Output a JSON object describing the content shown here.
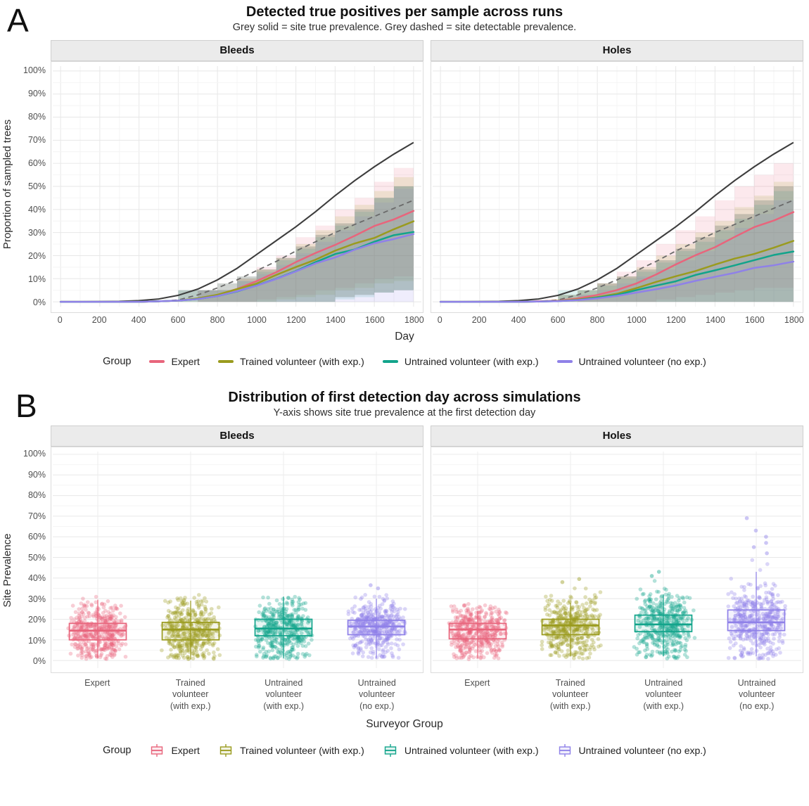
{
  "page": {
    "panel_a_letter": "A",
    "panel_b_letter": "B"
  },
  "chart_data": [
    {
      "id": "panel_a",
      "type": "line",
      "title": "Detected true positives per sample across runs",
      "subtitle": "Grey solid = site true prevalence. Grey dashed = site detectable prevalence.",
      "facets": [
        "Bleeds",
        "Holes"
      ],
      "xlabel": "Day",
      "ylabel": "Proportion of sampled trees",
      "xlim": [
        0,
        1800
      ],
      "ylim": [
        0,
        100
      ],
      "x_ticks": [
        0,
        200,
        400,
        600,
        800,
        1000,
        1200,
        1400,
        1600,
        1800
      ],
      "y_ticks_percent": [
        0,
        10,
        20,
        30,
        40,
        50,
        60,
        70,
        80,
        90,
        100
      ],
      "grid": "major 10% / 200 days, minor 5% / 100 days",
      "legend": {
        "title": "Group",
        "position": "bottom",
        "items": [
          {
            "label": "Expert",
            "color": "#E8657C"
          },
          {
            "label": "Trained volunteer (with exp.)",
            "color": "#9A9B1E"
          },
          {
            "label": "Untrained volunteer (with exp.)",
            "color": "#12A48B"
          },
          {
            "label": "Untrained volunteer (no exp.)",
            "color": "#8F81E8"
          }
        ]
      },
      "reference": {
        "solid_label": "site true prevalence",
        "solid_color": "#3D3D3D",
        "dashed_label": "site detectable prevalence",
        "dashed_color": "#6A6A6A"
      },
      "x_sample_days": [
        0,
        100,
        200,
        300,
        400,
        500,
        600,
        700,
        800,
        900,
        1000,
        1100,
        1200,
        1300,
        1400,
        1500,
        1600,
        1700,
        1800
      ],
      "ribbon_days": [
        600,
        700,
        800,
        900,
        1000,
        1100,
        1200,
        1300,
        1400,
        1500,
        1600,
        1700,
        1800
      ],
      "facet_data": {
        "Bleeds": {
          "true_prevalence": [
            0,
            0,
            0.1,
            0.2,
            0.5,
            1.2,
            2.8,
            5.5,
            9.5,
            14.5,
            20.5,
            26.5,
            32.5,
            39,
            46,
            52.5,
            58.5,
            64,
            69
          ],
          "detectable_prevalence": [
            0,
            0,
            0,
            0,
            0,
            0.2,
            0.8,
            3,
            6,
            9.5,
            13.5,
            17.5,
            22,
            26,
            30,
            33.5,
            37,
            40.5,
            44
          ],
          "series": [
            {
              "name": "Expert",
              "color": "#E8657C",
              "values": [
                0,
                0,
                0,
                0,
                0,
                0.2,
                0.5,
                1.5,
                3,
                5.5,
                9,
                13,
                17,
                21,
                25,
                28.5,
                32.5,
                36,
                39.5
              ],
              "ribbon_hi": [
                0,
                5,
                5,
                10,
                15,
                20,
                28,
                33,
                40,
                45,
                52,
                58,
                65
              ],
              "ribbon_lo": [
                0,
                0,
                0,
                0,
                0,
                1,
                2,
                3,
                5,
                6,
                8,
                10,
                11
              ]
            },
            {
              "name": "Trained volunteer (with exp.)",
              "color": "#9A9B1E",
              "values": [
                0,
                0,
                0,
                0,
                0,
                0.2,
                0.5,
                1.5,
                3,
                5.5,
                8,
                11.5,
                15,
                18.5,
                22,
                25,
                28,
                31.5,
                34.5
              ],
              "ribbon_hi": [
                0,
                5,
                5,
                10,
                14,
                19,
                25,
                31,
                37,
                42,
                48,
                54,
                60
              ],
              "ribbon_lo": [
                0,
                0,
                0,
                0,
                0,
                0,
                1,
                2,
                3,
                5,
                6,
                8,
                9
              ]
            },
            {
              "name": "Untrained volunteer (with exp.)",
              "color": "#12A48B",
              "values": [
                0,
                0,
                0,
                0,
                0,
                0.2,
                0.5,
                1.2,
                2.5,
                4.5,
                7,
                10,
                13.5,
                17,
                20.5,
                23,
                26,
                28.5,
                30.5
              ],
              "ribbon_hi": [
                5,
                5,
                5,
                9,
                13,
                18,
                23,
                28,
                33,
                39,
                45,
                50,
                55
              ],
              "ribbon_lo": [
                0,
                0,
                0,
                0,
                0,
                0,
                0,
                0,
                0,
                1,
                2,
                4,
                5
              ]
            },
            {
              "name": "Untrained volunteer (no exp.)",
              "color": "#8F81E8",
              "values": [
                0,
                0,
                0,
                0,
                0,
                0.2,
                0.5,
                1.2,
                2.5,
                4.5,
                7,
                10,
                13,
                16.5,
                19.5,
                22.5,
                25,
                27.5,
                29.5
              ],
              "ribbon_hi": [
                0,
                5,
                5,
                9,
                12,
                16,
                21,
                26,
                31,
                37,
                43,
                49,
                55
              ],
              "ribbon_lo": [
                0,
                0,
                0,
                0,
                0,
                0,
                0,
                0,
                0,
                0,
                0,
                0,
                0
              ]
            }
          ],
          "overlap_band": {
            "hi": [
              5,
              5,
              8,
              11,
              14,
              19,
              24,
              29,
              34,
              40,
              45,
              50,
              55
            ],
            "lo": [
              0,
              0,
              0,
              0,
              0,
              0,
              0,
              0,
              0,
              2,
              3,
              4,
              5
            ]
          }
        },
        "Holes": {
          "true_prevalence": [
            0,
            0,
            0.1,
            0.2,
            0.5,
            1.2,
            2.8,
            5.5,
            9.5,
            14.5,
            20.5,
            26.5,
            32.5,
            39,
            46,
            52.5,
            58.5,
            64,
            69
          ],
          "detectable_prevalence": [
            0,
            0,
            0,
            0,
            0,
            0.2,
            0.8,
            3,
            6,
            9.5,
            13.5,
            17.5,
            22,
            26,
            30,
            33.5,
            37,
            40.5,
            44
          ],
          "series": [
            {
              "name": "Expert",
              "color": "#E8657C",
              "values": [
                0,
                0,
                0,
                0,
                0,
                0.2,
                0.5,
                1.5,
                3,
                5,
                8,
                12,
                16,
                20,
                24,
                28,
                32,
                35.5,
                39
              ],
              "ribbon_hi": [
                0,
                3,
                8,
                13,
                18,
                25,
                31,
                37,
                44,
                50,
                55,
                60,
                63
              ],
              "ribbon_lo": [
                0,
                0,
                0,
                0,
                0,
                0,
                1,
                2,
                3,
                4,
                5,
                6,
                6
              ]
            },
            {
              "name": "Trained volunteer (with exp.)",
              "color": "#9A9B1E",
              "values": [
                0,
                0,
                0,
                0,
                0,
                0.1,
                0.4,
                1,
                2,
                3.5,
                6,
                8.5,
                11,
                13.5,
                16,
                18.5,
                21,
                23.5,
                26
              ],
              "ribbon_hi": [
                3,
                5,
                8,
                11,
                15,
                20,
                25,
                30,
                35,
                41,
                46,
                52,
                57
              ],
              "ribbon_lo": [
                0,
                0,
                0,
                0,
                0,
                0,
                0,
                0,
                0,
                0,
                0,
                0,
                0
              ]
            },
            {
              "name": "Untrained volunteer (with exp.)",
              "color": "#12A48B",
              "values": [
                0,
                0,
                0,
                0,
                0,
                0.1,
                0.3,
                0.8,
                1.8,
                3,
                5,
                7,
                9,
                11.5,
                13.5,
                16,
                18,
                20,
                22
              ],
              "ribbon_hi": [
                5,
                5,
                7,
                10,
                13,
                17,
                22,
                26,
                31,
                36,
                42,
                48,
                54
              ],
              "ribbon_lo": [
                0,
                0,
                0,
                0,
                0,
                0,
                0,
                0,
                0,
                0,
                0,
                0,
                0
              ]
            },
            {
              "name": "Untrained volunteer (no exp.)",
              "color": "#8F81E8",
              "values": [
                0,
                0,
                0,
                0,
                0,
                0.1,
                0.3,
                0.7,
                1.5,
                2.5,
                4,
                5.5,
                7,
                9,
                11,
                12.5,
                14.5,
                16,
                17.5
              ],
              "ribbon_hi": [
                0,
                3,
                5,
                8,
                11,
                14,
                18,
                22,
                27,
                32,
                38,
                44,
                50
              ],
              "ribbon_lo": [
                0,
                0,
                0,
                0,
                0,
                0,
                0,
                0,
                0,
                0,
                0,
                0,
                0
              ]
            }
          ],
          "overlap_band": {
            "hi": [
              3,
              5,
              8,
              11,
              14,
              18,
              23,
              28,
              33,
              38,
              44,
              50,
              55
            ],
            "lo": [
              0,
              0,
              0,
              0,
              0,
              0,
              0,
              0,
              0,
              0,
              0,
              0,
              0
            ]
          }
        }
      }
    },
    {
      "id": "panel_b",
      "type": "boxplot-jitter",
      "title": "Distribution of first detection day across simulations",
      "subtitle": "Y-axis shows site true prevalence at the first detection day",
      "facets": [
        "Bleeds",
        "Holes"
      ],
      "xlabel": "Surveyor Group",
      "ylabel": "Site Prevalence",
      "ylim": [
        0,
        100
      ],
      "y_ticks_percent": [
        0,
        10,
        20,
        30,
        40,
        50,
        60,
        70,
        80,
        90,
        100
      ],
      "legend": {
        "title": "Group",
        "position": "bottom",
        "items": [
          {
            "label": "Expert",
            "color": "#E8657C"
          },
          {
            "label": "Trained volunteer (with exp.)",
            "color": "#9A9B1E"
          },
          {
            "label": "Untrained volunteer (with exp.)",
            "color": "#12A48B"
          },
          {
            "label": "Untrained volunteer (no exp.)",
            "color": "#8F81E8"
          }
        ]
      },
      "groups": [
        {
          "name": "Expert",
          "label_lines": [
            "Expert"
          ],
          "color": "#E8657C"
        },
        {
          "name": "Trained volunteer (with exp.)",
          "label_lines": [
            "Trained",
            "volunteer",
            "(with exp.)"
          ],
          "color": "#9A9B1E"
        },
        {
          "name": "Untrained volunteer (with exp.)",
          "label_lines": [
            "Untrained",
            "volunteer",
            "(with exp.)"
          ],
          "color": "#12A48B"
        },
        {
          "name": "Untrained volunteer (no exp.)",
          "label_lines": [
            "Untrained",
            "volunteer",
            "(no exp.)"
          ],
          "color": "#8F81E8"
        }
      ],
      "facet_data": {
        "Bleeds": [
          {
            "group": "Expert",
            "q1": 10,
            "median": 14.5,
            "q3": 18,
            "whisker_low": 1,
            "whisker_high": 29.5,
            "points_max": 31,
            "n_points": 430,
            "outliers": []
          },
          {
            "group": "Trained volunteer (with exp.)",
            "q1": 10,
            "median": 15,
            "q3": 18.5,
            "whisker_low": 0.5,
            "whisker_high": 29,
            "points_max": 32,
            "n_points": 430,
            "outliers": []
          },
          {
            "group": "Untrained volunteer (with exp.)",
            "q1": 12,
            "median": 15.5,
            "q3": 20,
            "whisker_low": 1,
            "whisker_high": 31,
            "points_max": 32,
            "n_points": 430,
            "outliers": []
          },
          {
            "group": "Untrained volunteer (no exp.)",
            "q1": 12.5,
            "median": 16.5,
            "q3": 19.5,
            "whisker_low": 1,
            "whisker_high": 30,
            "points_max": 34,
            "n_points": 430,
            "outliers": [
              35,
              36.5
            ]
          }
        ],
        "Holes": [
          {
            "group": "Expert",
            "q1": 10.5,
            "median": 15,
            "q3": 18,
            "whisker_low": 1,
            "whisker_high": 24,
            "points_max": 28,
            "n_points": 430,
            "outliers": []
          },
          {
            "group": "Trained volunteer (with exp.)",
            "q1": 12.5,
            "median": 17,
            "q3": 20,
            "whisker_low": 2,
            "whisker_high": 28,
            "points_max": 36,
            "n_points": 430,
            "outliers": [
              38,
              39.5
            ]
          },
          {
            "group": "Untrained volunteer (with exp.)",
            "q1": 14,
            "median": 17.5,
            "q3": 22,
            "whisker_low": 2,
            "whisker_high": 32,
            "points_max": 40,
            "n_points": 430,
            "outliers": [
              41,
              43
            ]
          },
          {
            "group": "Untrained volunteer (no exp.)",
            "q1": 14.5,
            "median": 18.5,
            "q3": 24.5,
            "whisker_low": 2,
            "whisker_high": 43,
            "points_max": 50,
            "n_points": 430,
            "outliers": [
              52,
              55,
              57,
              60,
              63,
              69
            ]
          }
        ]
      }
    }
  ]
}
